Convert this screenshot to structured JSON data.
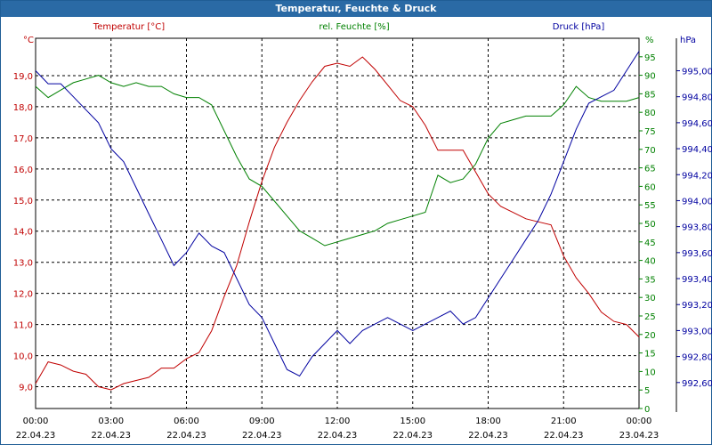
{
  "window": {
    "title": "Temperatur, Feuchte & Druck"
  },
  "colors": {
    "temperature": "#c00000",
    "humidity": "#008000",
    "pressure": "#0000a0",
    "grid": "#000000",
    "frame": "#2a6aa5"
  },
  "chart_data": {
    "type": "line",
    "title": "Temperatur, Feuchte & Druck",
    "x_ticks": [
      {
        "time": "00:00",
        "date": "22.04.23"
      },
      {
        "time": "03:00",
        "date": "22.04.23"
      },
      {
        "time": "06:00",
        "date": "22.04.23"
      },
      {
        "time": "09:00",
        "date": "22.04.23"
      },
      {
        "time": "12:00",
        "date": "22.04.23"
      },
      {
        "time": "15:00",
        "date": "22.04.23"
      },
      {
        "time": "18:00",
        "date": "22.04.23"
      },
      {
        "time": "21:00",
        "date": "22.04.23"
      },
      {
        "time": "00:00",
        "date": "23.04.23"
      }
    ],
    "x_range_hours": [
      0,
      24
    ],
    "axes": {
      "temperature": {
        "label": "Temperatur [°C]",
        "unit": "°C",
        "range": [
          8.3,
          20.2
        ],
        "ticks": [
          "9,0",
          "10,0",
          "11,0",
          "12,0",
          "13,0",
          "14,0",
          "15,0",
          "16,0",
          "17,0",
          "18,0",
          "19,0"
        ]
      },
      "humidity": {
        "label": "rel. Feuchte [%]",
        "unit": "%",
        "range": [
          0,
          100
        ],
        "ticks": [
          "0",
          "5",
          "10",
          "15",
          "20",
          "25",
          "30",
          "35",
          "40",
          "45",
          "50",
          "55",
          "60",
          "65",
          "70",
          "75",
          "80",
          "85",
          "90",
          "95"
        ]
      },
      "pressure": {
        "label": "Druck [hPa]",
        "unit": "hPa",
        "range": [
          992.4,
          995.25
        ],
        "ticks": [
          "992,60",
          "992,80",
          "993,00",
          "993,20",
          "993,40",
          "993,60",
          "993,80",
          "994,00",
          "994,20",
          "994,40",
          "994,60",
          "994,80",
          "995,00"
        ]
      }
    },
    "series": [
      {
        "name": "Temperatur",
        "axis": "temperature",
        "points": [
          [
            0,
            9.1
          ],
          [
            0.5,
            9.8
          ],
          [
            1,
            9.7
          ],
          [
            1.5,
            9.5
          ],
          [
            2,
            9.4
          ],
          [
            2.5,
            9.0
          ],
          [
            3,
            8.9
          ],
          [
            3.5,
            9.1
          ],
          [
            4,
            9.2
          ],
          [
            4.5,
            9.3
          ],
          [
            5,
            9.6
          ],
          [
            5.5,
            9.6
          ],
          [
            6,
            9.9
          ],
          [
            6.5,
            10.1
          ],
          [
            7,
            10.8
          ],
          [
            7.5,
            11.9
          ],
          [
            8,
            12.9
          ],
          [
            8.5,
            14.3
          ],
          [
            9,
            15.6
          ],
          [
            9.5,
            16.7
          ],
          [
            10,
            17.5
          ],
          [
            10.5,
            18.2
          ],
          [
            11,
            18.8
          ],
          [
            11.5,
            19.3
          ],
          [
            12,
            19.4
          ],
          [
            12.5,
            19.3
          ],
          [
            13,
            19.6
          ],
          [
            13.5,
            19.2
          ],
          [
            14,
            18.7
          ],
          [
            14.5,
            18.2
          ],
          [
            15,
            18.0
          ],
          [
            15.5,
            17.4
          ],
          [
            16,
            16.6
          ],
          [
            16.5,
            16.6
          ],
          [
            17,
            16.6
          ],
          [
            17.5,
            15.9
          ],
          [
            18,
            15.2
          ],
          [
            18.5,
            14.8
          ],
          [
            19,
            14.6
          ],
          [
            19.5,
            14.4
          ],
          [
            20,
            14.3
          ],
          [
            20.5,
            14.2
          ],
          [
            21,
            13.2
          ],
          [
            21.5,
            12.5
          ],
          [
            22,
            12.0
          ],
          [
            22.5,
            11.4
          ],
          [
            23,
            11.1
          ],
          [
            23.5,
            11.0
          ],
          [
            24,
            10.6
          ]
        ]
      },
      {
        "name": "rel. Feuchte",
        "axis": "humidity",
        "points": [
          [
            0,
            87
          ],
          [
            0.5,
            84
          ],
          [
            1,
            86
          ],
          [
            1.5,
            88
          ],
          [
            2,
            89
          ],
          [
            2.5,
            90
          ],
          [
            3,
            88
          ],
          [
            3.5,
            87
          ],
          [
            4,
            88
          ],
          [
            4.5,
            87
          ],
          [
            5,
            87
          ],
          [
            5.5,
            85
          ],
          [
            6,
            84
          ],
          [
            6.5,
            84
          ],
          [
            7,
            82
          ],
          [
            7.5,
            75
          ],
          [
            8,
            68
          ],
          [
            8.5,
            62
          ],
          [
            9,
            60
          ],
          [
            9.5,
            56
          ],
          [
            10,
            52
          ],
          [
            10.5,
            48
          ],
          [
            11,
            46
          ],
          [
            11.5,
            44
          ],
          [
            12,
            45
          ],
          [
            12.5,
            46
          ],
          [
            13,
            47
          ],
          [
            13.5,
            48
          ],
          [
            14,
            50
          ],
          [
            14.5,
            51
          ],
          [
            15,
            52
          ],
          [
            15.5,
            53
          ],
          [
            16,
            63
          ],
          [
            16.5,
            61
          ],
          [
            17,
            62
          ],
          [
            17.5,
            66
          ],
          [
            18,
            73
          ],
          [
            18.5,
            77
          ],
          [
            19,
            78
          ],
          [
            19.5,
            79
          ],
          [
            20,
            79
          ],
          [
            20.5,
            79
          ],
          [
            21,
            82
          ],
          [
            21.5,
            87
          ],
          [
            22,
            84
          ],
          [
            22.5,
            83
          ],
          [
            23,
            83
          ],
          [
            23.5,
            83
          ],
          [
            24,
            84
          ]
        ]
      },
      {
        "name": "Druck",
        "axis": "pressure",
        "points": [
          [
            0,
            995.0
          ],
          [
            0.5,
            994.9
          ],
          [
            1,
            994.9
          ],
          [
            1.5,
            994.8
          ],
          [
            2,
            994.7
          ],
          [
            2.5,
            994.6
          ],
          [
            3,
            994.4
          ],
          [
            3.5,
            994.3
          ],
          [
            4,
            994.1
          ],
          [
            4.5,
            993.9
          ],
          [
            5,
            993.7
          ],
          [
            5.5,
            993.5
          ],
          [
            6,
            993.6
          ],
          [
            6.5,
            993.75
          ],
          [
            7,
            993.65
          ],
          [
            7.5,
            993.6
          ],
          [
            8,
            993.4
          ],
          [
            8.5,
            993.2
          ],
          [
            9,
            993.1
          ],
          [
            9.5,
            992.9
          ],
          [
            10,
            992.7
          ],
          [
            10.5,
            992.65
          ],
          [
            11,
            992.8
          ],
          [
            11.5,
            992.9
          ],
          [
            12,
            993.0
          ],
          [
            12.5,
            992.9
          ],
          [
            13,
            993.0
          ],
          [
            13.5,
            993.05
          ],
          [
            14,
            993.1
          ],
          [
            14.5,
            993.05
          ],
          [
            15,
            993.0
          ],
          [
            15.5,
            993.05
          ],
          [
            16,
            993.1
          ],
          [
            16.5,
            993.15
          ],
          [
            17,
            993.05
          ],
          [
            17.5,
            993.1
          ],
          [
            18,
            993.25
          ],
          [
            18.5,
            993.4
          ],
          [
            19,
            993.55
          ],
          [
            19.5,
            993.7
          ],
          [
            20,
            993.85
          ],
          [
            20.5,
            994.05
          ],
          [
            21,
            994.3
          ],
          [
            21.5,
            994.55
          ],
          [
            22,
            994.75
          ],
          [
            22.5,
            994.8
          ],
          [
            23,
            994.85
          ],
          [
            23.5,
            995.0
          ],
          [
            24,
            995.15
          ]
        ]
      }
    ]
  }
}
